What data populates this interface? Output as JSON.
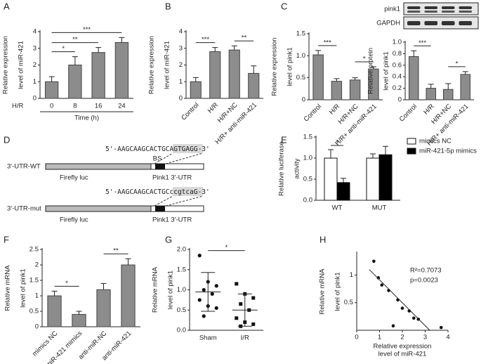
{
  "chart_data": [
    {
      "panel": "A",
      "type": "bar",
      "ylabel": [
        "Relative expression",
        "level of miR-421"
      ],
      "categories": [
        "0",
        "8",
        "16",
        "24"
      ],
      "values": [
        1.0,
        2.0,
        2.75,
        3.35
      ],
      "errors": [
        0.3,
        0.5,
        0.3,
        0.3
      ],
      "color": "#8c8c8c",
      "ylim": [
        0,
        4
      ],
      "yticks": [
        0,
        1,
        2,
        3,
        4
      ],
      "row_label": "H/R",
      "xlabel": "Time (h)",
      "significance": [
        {
          "between": [
            0,
            1
          ],
          "label": "*"
        },
        {
          "between": [
            0,
            2
          ],
          "label": "**"
        },
        {
          "between": [
            0,
            3
          ],
          "label": "***"
        }
      ]
    },
    {
      "panel": "B",
      "type": "bar",
      "rotate": true,
      "ylabel": [
        "Relative expression",
        "level of miR-421"
      ],
      "categories": [
        "Control",
        "H/R",
        "H/R+NC",
        "H/R+ anti-miR-421"
      ],
      "values": [
        1.0,
        2.8,
        2.9,
        1.5
      ],
      "errors": [
        0.25,
        0.25,
        0.25,
        0.45
      ],
      "color": "#8c8c8c",
      "ylim": [
        0,
        4
      ],
      "yticks": [
        0,
        1,
        2,
        3,
        4
      ],
      "significance": [
        {
          "between": [
            0,
            1
          ],
          "label": "***"
        },
        {
          "between": [
            2,
            3
          ],
          "label": "**"
        }
      ]
    },
    {
      "panel": "C",
      "type": "bar",
      "rotate": true,
      "ylabel": [
        "Relative expression",
        "level of pink1"
      ],
      "categories": [
        "Control",
        "H/R",
        "H/R+NC",
        "H/R+ anti-miR-421"
      ],
      "values": [
        1.02,
        0.42,
        0.45,
        0.7
      ],
      "errors": [
        0.1,
        0.06,
        0.05,
        0.05
      ],
      "color": "#8c8c8c",
      "ylim": [
        0,
        1.5
      ],
      "yticks": [
        0,
        0.5,
        {
          "value": 1,
          "label": "1.0"
        },
        1.5
      ],
      "significance": [
        {
          "between": [
            0,
            1
          ],
          "label": "***"
        },
        {
          "between": [
            2,
            3
          ],
          "label": "*"
        }
      ]
    },
    {
      "type": "bar",
      "rotate": true,
      "ylabel": [
        "Relative protein",
        "level of pink1"
      ],
      "blot_labels": [
        "pink1",
        "GAPDH"
      ],
      "categories": [
        "Control",
        "H/R",
        "H/R+NC",
        "H/R+ anti-miR-421"
      ],
      "values": [
        0.75,
        0.2,
        0.18,
        0.44
      ],
      "errors": [
        0.1,
        0.07,
        0.1,
        0.05
      ],
      "color": "#8c8c8c",
      "ylim": [
        0,
        1
      ],
      "yticks": [
        0,
        0.2,
        0.4,
        0.6,
        0.8,
        {
          "value": 1,
          "label": "1.0"
        }
      ],
      "significance": [
        {
          "between": [
            0,
            1
          ],
          "label": "***"
        },
        {
          "between": [
            2,
            3
          ],
          "label": "*"
        }
      ]
    },
    {
      "panel": "E",
      "type": "grouped_bar",
      "ylabel": [
        "Relative luciferase",
        "activity"
      ],
      "categories": [
        "WT",
        "MUT"
      ],
      "series": [
        {
          "name": "mimics NC",
          "color": "#ffffff",
          "values": [
            1.0,
            1.0
          ],
          "errors": [
            0.2,
            0.1
          ]
        },
        {
          "name": "miR-421-5p mimics",
          "color": "#000000",
          "values": [
            0.42,
            1.08
          ],
          "errors": [
            0.1,
            0.2
          ]
        }
      ],
      "ylim": [
        0,
        1.5
      ],
      "yticks": [
        {
          "value": 0,
          "label": "0.0"
        },
        0.5,
        {
          "value": 1,
          "label": "1.0"
        },
        1.5
      ],
      "significance": [
        {
          "category": 0,
          "label": "*"
        }
      ]
    },
    {
      "panel": "F",
      "type": "bar",
      "rotate": true,
      "ylabel": [
        "Relative mRNA",
        "level of pink1"
      ],
      "categories": [
        "mimics NC",
        "miR-421 mimics",
        "anti-miR-NC",
        "anti-miR-421"
      ],
      "values": [
        1.0,
        0.4,
        1.2,
        2.0
      ],
      "errors": [
        0.15,
        0.1,
        0.2,
        0.2
      ],
      "color": "#8c8c8c",
      "ylim": [
        0,
        2.5
      ],
      "yticks": [
        0,
        0.5,
        1,
        1.5,
        2,
        2.5
      ],
      "significance": [
        {
          "between": [
            0,
            1
          ],
          "label": "*"
        },
        {
          "between": [
            2,
            3
          ],
          "label": "**"
        }
      ]
    },
    {
      "panel": "G",
      "type": "strip",
      "ylabel": [
        "Relative mRNA",
        "level of pink1"
      ],
      "categories": [
        "Sham",
        "I/R"
      ],
      "groups": [
        {
          "marker": "circle",
          "values": [
            1.85,
            1.2,
            1.1,
            1.0,
            0.9,
            0.75,
            0.6,
            0.55,
            0.35
          ],
          "mean": 0.95,
          "sd": 0.48
        },
        {
          "marker": "square",
          "values": [
            1.15,
            0.9,
            0.8,
            0.65,
            0.5,
            0.3,
            0.2,
            0.15,
            0.1
          ],
          "mean": 0.5,
          "sd": 0.4
        }
      ],
      "ylim": [
        0,
        2
      ],
      "yticks": [
        {
          "value": 0,
          "label": "0.0"
        },
        0.5,
        {
          "value": 1,
          "label": "1.0"
        },
        1.5,
        {
          "value": 2,
          "label": "2.0"
        }
      ],
      "significance": [
        {
          "between": [
            0,
            1
          ],
          "label": "*"
        }
      ]
    },
    {
      "panel": "H",
      "type": "scatter",
      "ylabel": [
        "Relative mRNA",
        "level of pink1"
      ],
      "xlabel": [
        "Relative expression",
        "level of miR-421"
      ],
      "annotations": [
        "R²=0.7073",
        "p=0.0023"
      ],
      "x": [
        0.75,
        0.95,
        1.1,
        1.4,
        1.6,
        1.8,
        2.0,
        2.3,
        2.5,
        2.7,
        3.7
      ],
      "values": [
        1.25,
        0.95,
        0.82,
        0.72,
        0.08,
        0.55,
        0.4,
        0.35,
        0.22,
        0.2,
        0.05
      ],
      "trend": {
        "x": [
          0.55,
          3.2
        ],
        "y": [
          1.1,
          0
        ]
      },
      "xlim": [
        0,
        4
      ],
      "xticks": [
        0,
        1,
        2,
        3,
        4
      ],
      "ylim": [
        0,
        1.4
      ],
      "yticks": [
        0.5,
        1
      ]
    }
  ],
  "diagram": {
    "panel": "D",
    "wt": {
      "label": "3'-UTR-WT",
      "sequence": [
        "5'-AAGCAAGCACTGC",
        "AGTGAGG",
        "-3'"
      ]
    },
    "mut": {
      "label": "3'-UTR-mut",
      "sequence": [
        "5'-AAGCAAGCACTGC",
        "ccgtcaG",
        "-3'"
      ]
    },
    "site": "BS",
    "luc": "Firefly luc",
    "utr": "Pink1 3'-UTR"
  }
}
